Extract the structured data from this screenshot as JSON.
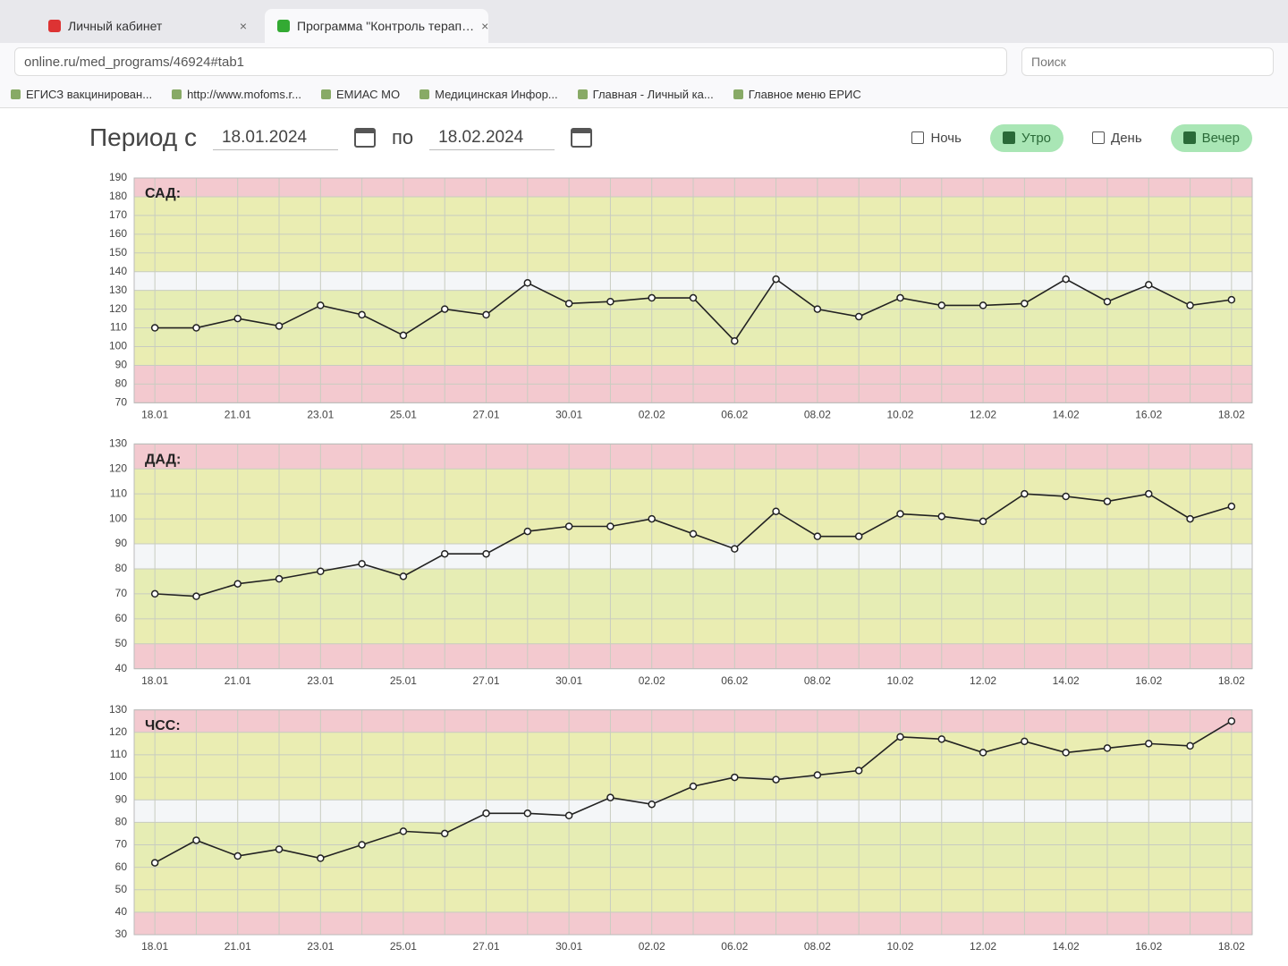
{
  "browser": {
    "tabs": [
      {
        "title": "Личный кабинет",
        "active": false
      },
      {
        "title": "Программа \"Контроль терап…",
        "active": true
      }
    ],
    "url": "online.ru/med_programs/46924#tab1",
    "search": "Поиск",
    "bookmarks": [
      "ЕГИСЗ вакцинирован...",
      "http://www.mofoms.r...",
      "ЕМИАС МО",
      "Медицинская Инфор...",
      "Главная - Личный ка...",
      "Главное меню ЕРИС"
    ]
  },
  "filters": {
    "period_from_label": "Период с",
    "date_from": "18.01.2024",
    "period_to_label": "по",
    "date_to": "18.02.2024",
    "toggles": [
      {
        "label": "Ночь",
        "checked": false
      },
      {
        "label": "Утро",
        "checked": true
      },
      {
        "label": "День",
        "checked": false
      },
      {
        "label": "Вечер",
        "checked": true
      }
    ]
  },
  "chart_data": [
    {
      "type": "line",
      "title": "САД:",
      "categories": [
        "18.01",
        null,
        "21.01",
        null,
        "23.01",
        null,
        "25.01",
        null,
        "27.01",
        null,
        "30.01",
        null,
        "02.02",
        null,
        "06.02",
        null,
        "08.02",
        null,
        "10.02",
        null,
        "12.02",
        null,
        "14.02",
        null,
        "16.02",
        null,
        "18.02"
      ],
      "series": [
        {
          "color": "#222222",
          "values": [
            110,
            110,
            115,
            111,
            122,
            117,
            106,
            120,
            117,
            134,
            123,
            124,
            126,
            126,
            103,
            136,
            120,
            116,
            126,
            122,
            122,
            123,
            136,
            124,
            133,
            122,
            125
          ]
        }
      ],
      "ylim": [
        70,
        190
      ],
      "yticks": [
        70,
        80,
        90,
        100,
        110,
        120,
        130,
        140,
        150,
        160,
        170,
        180,
        190
      ],
      "grid": true,
      "bands": [
        {
          "from": 180,
          "to": 190,
          "color": "#f3c9cf"
        },
        {
          "from": 140,
          "to": 180,
          "color": "#eaedb2"
        },
        {
          "from": 100,
          "to": 130,
          "color": "#e6edb4"
        },
        {
          "from": 90,
          "to": 100,
          "color": "#eaedb2"
        },
        {
          "from": 70,
          "to": 90,
          "color": "#f3c9cf"
        }
      ]
    },
    {
      "type": "line",
      "title": "ДАД:",
      "categories": [
        "18.01",
        null,
        "21.01",
        null,
        "23.01",
        null,
        "25.01",
        null,
        "27.01",
        null,
        "30.01",
        null,
        "02.02",
        null,
        "06.02",
        null,
        "08.02",
        null,
        "10.02",
        null,
        "12.02",
        null,
        "14.02",
        null,
        "16.02",
        null,
        "18.02"
      ],
      "series": [
        {
          "color": "#222222",
          "values": [
            70,
            69,
            74,
            76,
            79,
            82,
            77,
            86,
            86,
            95,
            97,
            97,
            100,
            94,
            88,
            103,
            93,
            93,
            102,
            101,
            99,
            110,
            109,
            107,
            110,
            100,
            105
          ]
        }
      ],
      "ylim": [
        40,
        130
      ],
      "yticks": [
        40,
        50,
        60,
        70,
        80,
        90,
        100,
        110,
        120,
        130
      ],
      "grid": true,
      "bands": [
        {
          "from": 120,
          "to": 130,
          "color": "#f3c9cf"
        },
        {
          "from": 90,
          "to": 120,
          "color": "#eaedb2"
        },
        {
          "from": 60,
          "to": 80,
          "color": "#e6edb4"
        },
        {
          "from": 50,
          "to": 60,
          "color": "#eaedb2"
        },
        {
          "from": 40,
          "to": 50,
          "color": "#f3c9cf"
        }
      ]
    },
    {
      "type": "line",
      "title": "ЧСС:",
      "categories": [
        "18.01",
        null,
        "21.01",
        null,
        "23.01",
        null,
        "25.01",
        null,
        "27.01",
        null,
        "30.01",
        null,
        "02.02",
        null,
        "06.02",
        null,
        "08.02",
        null,
        "10.02",
        null,
        "12.02",
        null,
        "14.02",
        null,
        "16.02",
        null,
        "18.02"
      ],
      "series": [
        {
          "color": "#222222",
          "values": [
            62,
            72,
            65,
            68,
            64,
            70,
            76,
            75,
            84,
            84,
            83,
            91,
            88,
            96,
            100,
            99,
            101,
            103,
            118,
            117,
            111,
            116,
            111,
            113,
            115,
            114,
            125
          ]
        }
      ],
      "ylim": [
        30,
        130
      ],
      "yticks": [
        30,
        40,
        50,
        60,
        70,
        80,
        90,
        100,
        110,
        120,
        130
      ],
      "grid": true,
      "bands": [
        {
          "from": 120,
          "to": 130,
          "color": "#f3c9cf"
        },
        {
          "from": 90,
          "to": 120,
          "color": "#eaedb2"
        },
        {
          "from": 60,
          "to": 80,
          "color": "#e6edb4"
        },
        {
          "from": 40,
          "to": 60,
          "color": "#eaedb2"
        },
        {
          "from": 30,
          "to": 40,
          "color": "#f3c9cf"
        }
      ]
    }
  ]
}
